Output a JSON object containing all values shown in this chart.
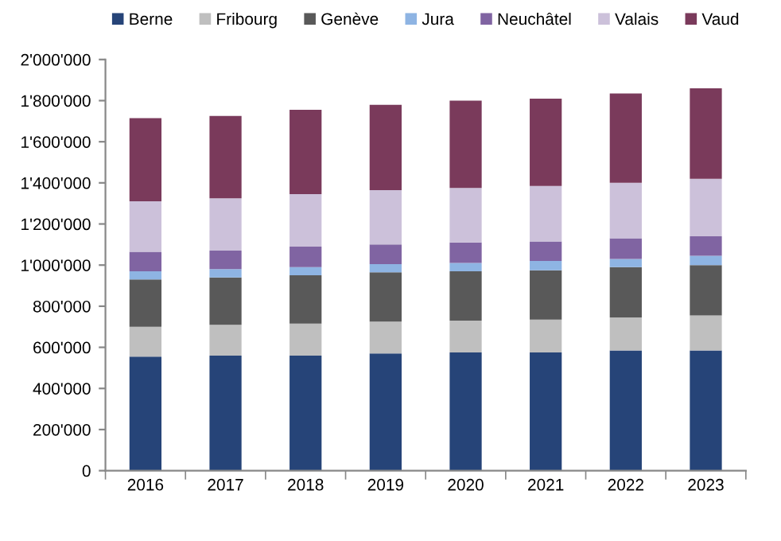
{
  "chart_data": {
    "type": "bar",
    "stacked": true,
    "categories": [
      "2016",
      "2017",
      "2018",
      "2019",
      "2020",
      "2021",
      "2022",
      "2023"
    ],
    "series": [
      {
        "name": "Berne",
        "color": "#264478",
        "values": [
          555000,
          560000,
          560000,
          570000,
          575000,
          575000,
          585000,
          585000
        ]
      },
      {
        "name": "Fribourg",
        "color": "#bfbfbf",
        "values": [
          145000,
          150000,
          155000,
          155000,
          155000,
          160000,
          160000,
          170000
        ]
      },
      {
        "name": "Genève",
        "color": "#595959",
        "values": [
          230000,
          230000,
          235000,
          240000,
          240000,
          240000,
          245000,
          245000
        ]
      },
      {
        "name": "Jura",
        "color": "#8eb4e3",
        "values": [
          40000,
          40000,
          40000,
          40000,
          40000,
          45000,
          40000,
          45000
        ]
      },
      {
        "name": "Neuchâtel",
        "color": "#8064a2",
        "values": [
          95000,
          90000,
          100000,
          95000,
          100000,
          95000,
          100000,
          95000
        ]
      },
      {
        "name": "Valais",
        "color": "#ccc1da",
        "values": [
          245000,
          255000,
          255000,
          265000,
          265000,
          270000,
          270000,
          280000
        ]
      },
      {
        "name": "Vaud",
        "color": "#7a3a5b",
        "values": [
          405000,
          400000,
          410000,
          415000,
          425000,
          425000,
          435000,
          440000
        ]
      }
    ],
    "ylim": [
      0,
      2000000
    ],
    "yticks": [
      {
        "value": 0,
        "label": "0"
      },
      {
        "value": 200000,
        "label": "200'000"
      },
      {
        "value": 400000,
        "label": "400'000"
      },
      {
        "value": 600000,
        "label": "600'000"
      },
      {
        "value": 800000,
        "label": "800'000"
      },
      {
        "value": 1000000,
        "label": "1'000'000"
      },
      {
        "value": 1200000,
        "label": "1'200'000"
      },
      {
        "value": 1400000,
        "label": "1'400'000"
      },
      {
        "value": 1600000,
        "label": "1'600'000"
      },
      {
        "value": 1800000,
        "label": "1'800'000"
      },
      {
        "value": 2000000,
        "label": "2'000'000"
      }
    ],
    "legend": "top",
    "grid": false
  }
}
